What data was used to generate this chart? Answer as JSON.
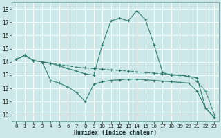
{
  "xlabel": "Humidex (Indice chaleur)",
  "background_color": "#cde8e8",
  "grid_color": "#b0d4d4",
  "line_color": "#2e7b6e",
  "xlim": [
    -0.5,
    23.5
  ],
  "ylim": [
    9.5,
    18.5
  ],
  "xticks": [
    0,
    1,
    2,
    3,
    4,
    5,
    6,
    7,
    8,
    9,
    10,
    11,
    12,
    13,
    14,
    15,
    16,
    17,
    18,
    19,
    20,
    21,
    22,
    23
  ],
  "yticks": [
    10,
    11,
    12,
    13,
    14,
    15,
    16,
    17,
    18
  ],
  "line1_x": [
    0,
    1,
    2,
    3,
    4,
    5,
    6,
    7,
    8,
    9,
    10,
    11,
    12,
    13,
    14,
    15,
    16,
    17,
    18,
    19,
    20,
    21,
    22,
    23
  ],
  "line1_y": [
    14.2,
    14.5,
    14.1,
    14.0,
    13.9,
    13.8,
    13.7,
    13.6,
    13.55,
    13.5,
    13.45,
    13.4,
    13.35,
    13.3,
    13.25,
    13.2,
    13.15,
    13.1,
    13.05,
    13.0,
    12.95,
    12.5,
    11.8,
    10.0
  ],
  "line2_x": [
    0,
    1,
    2,
    3,
    4,
    5,
    6,
    7,
    8,
    9,
    10,
    11,
    12,
    13,
    14,
    15,
    16,
    17,
    18,
    19,
    20,
    21,
    22,
    23
  ],
  "line2_y": [
    14.2,
    14.5,
    14.1,
    14.0,
    13.9,
    13.7,
    13.5,
    13.3,
    13.1,
    13.0,
    15.3,
    17.1,
    17.3,
    17.1,
    17.85,
    17.2,
    15.3,
    13.2,
    13.0,
    13.0,
    12.9,
    12.8,
    10.5,
    9.8
  ],
  "line3_x": [
    0,
    1,
    2,
    3,
    4,
    5,
    6,
    7,
    8,
    9,
    10,
    11,
    12,
    13,
    14,
    15,
    16,
    17,
    18,
    19,
    20,
    21,
    22,
    23
  ],
  "line3_y": [
    14.2,
    14.5,
    14.1,
    14.0,
    12.6,
    12.4,
    12.1,
    11.7,
    11.0,
    12.3,
    12.5,
    12.6,
    12.65,
    12.7,
    12.7,
    12.65,
    12.6,
    12.55,
    12.5,
    12.45,
    12.4,
    11.8,
    10.5,
    9.8
  ]
}
